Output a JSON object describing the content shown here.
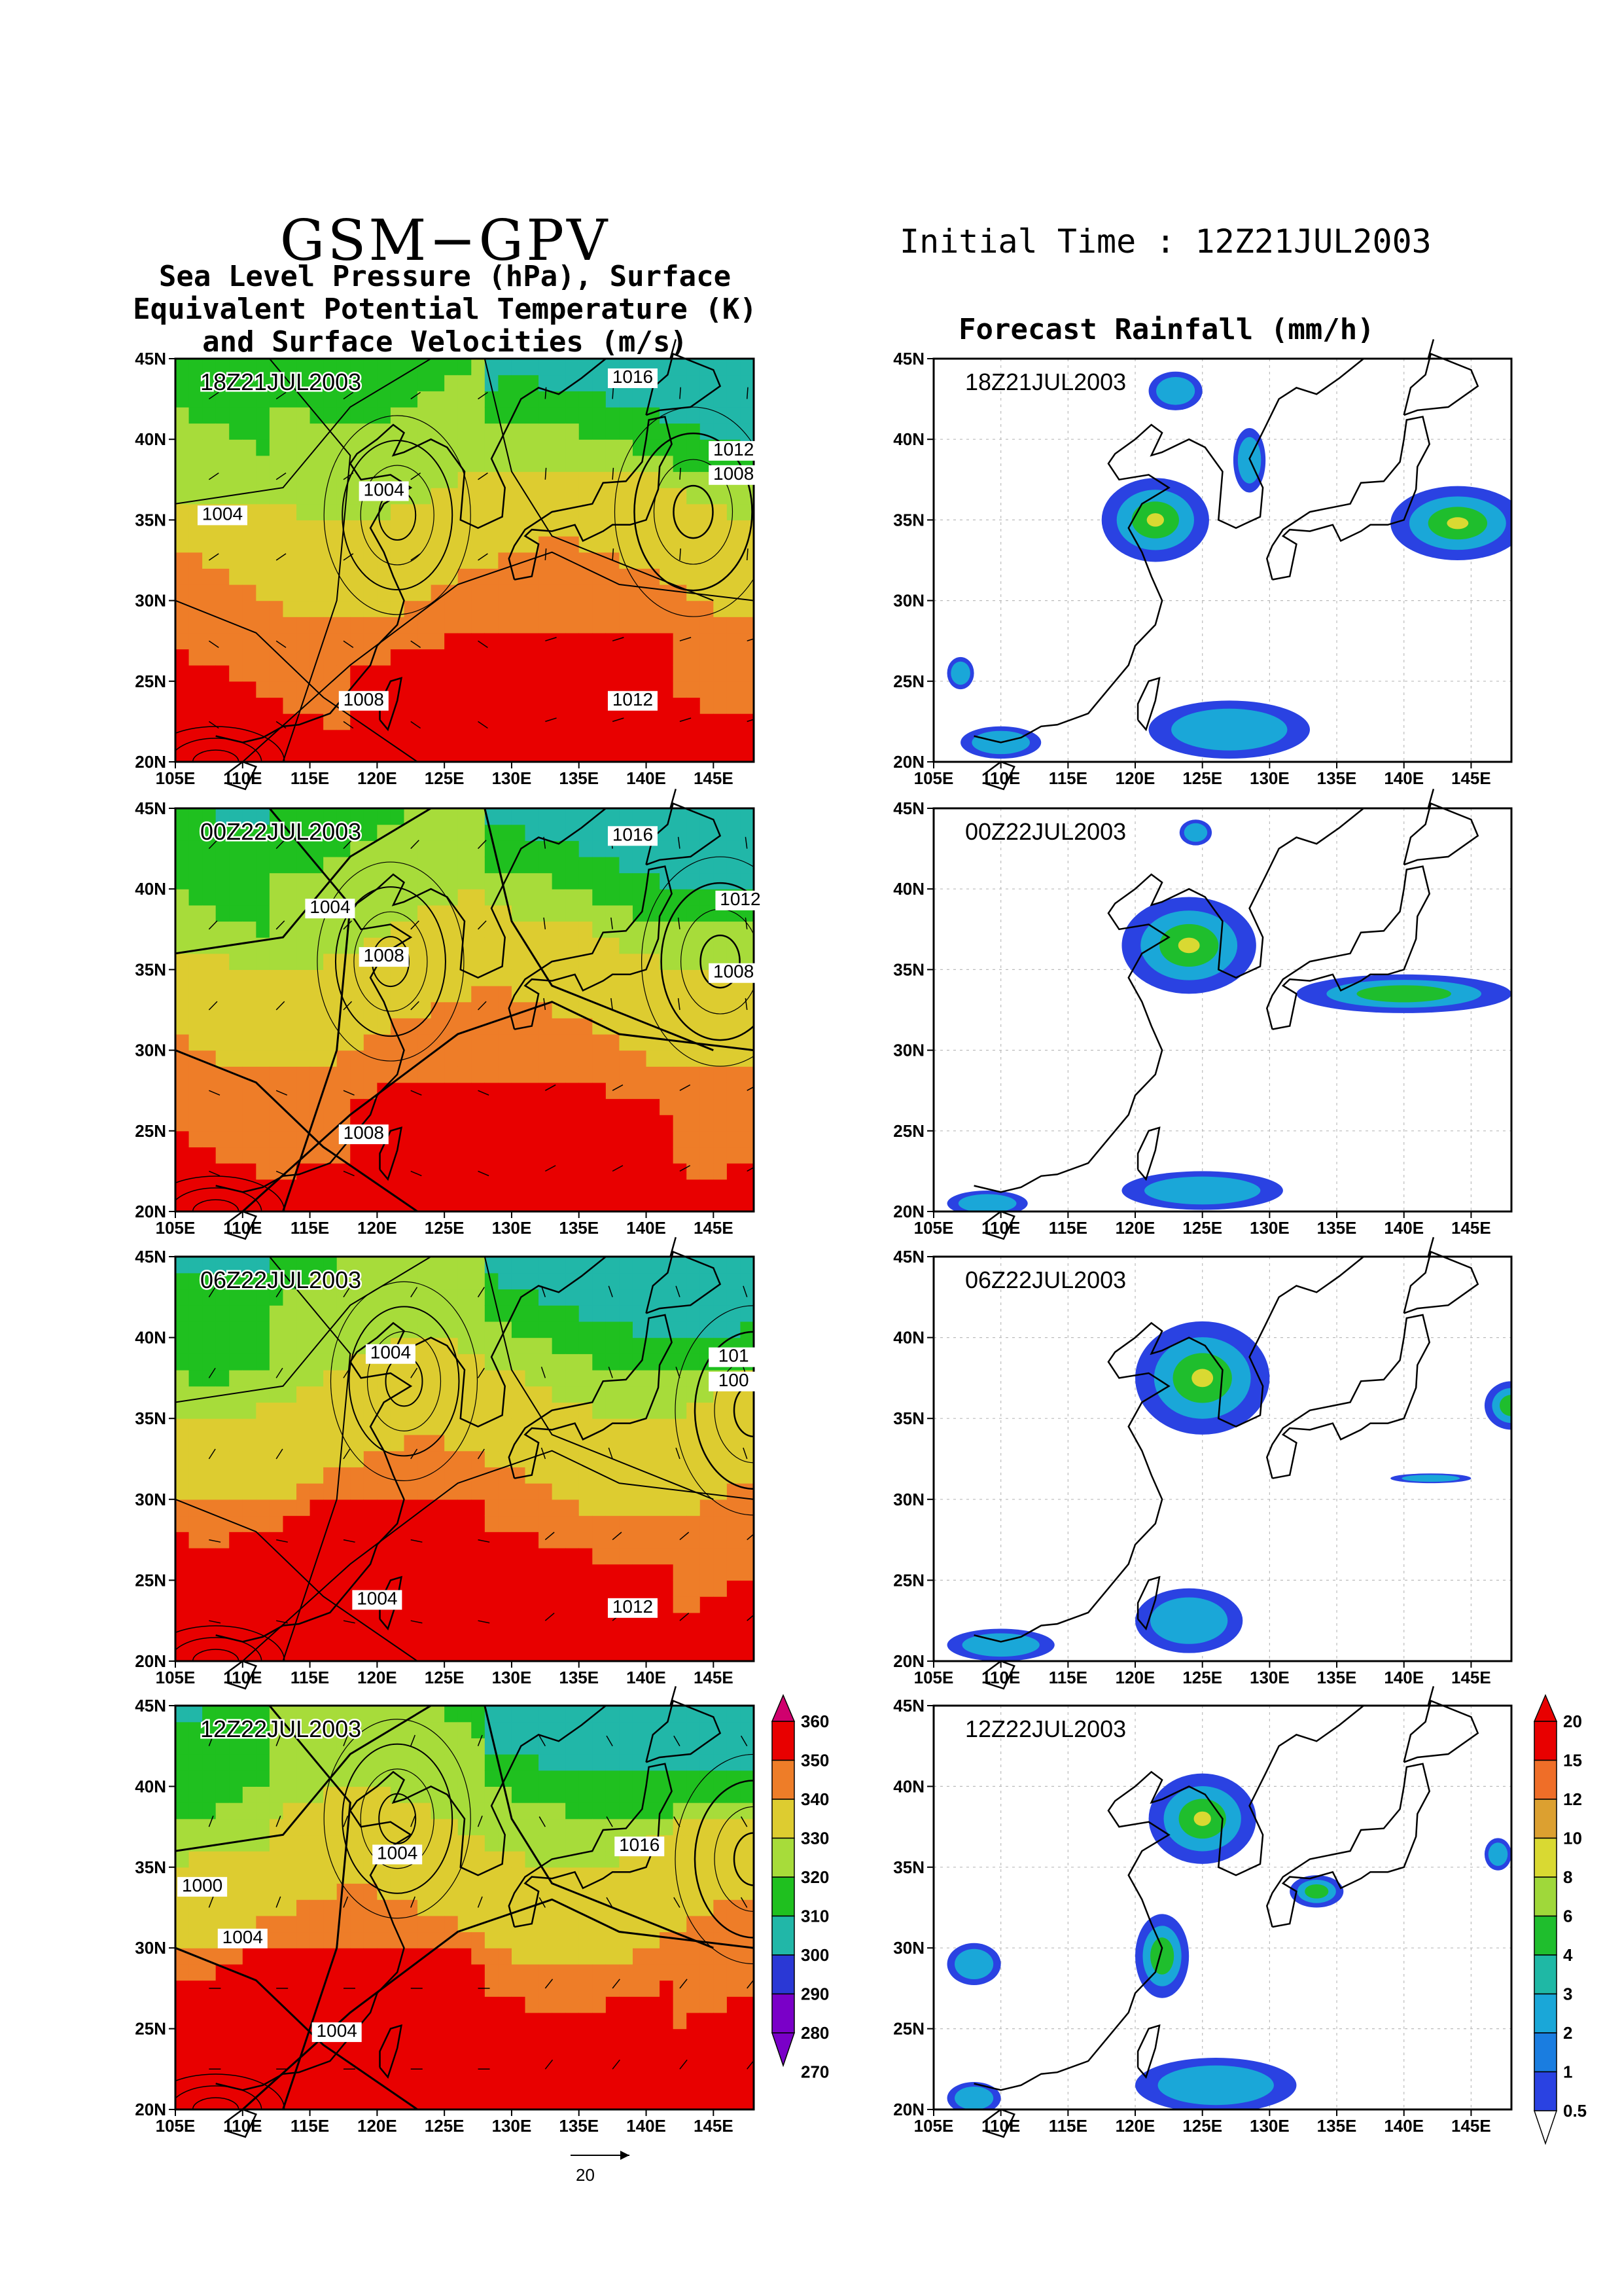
{
  "header": {
    "title": "GSM−GPV",
    "subtitle_lines": [
      "Sea Level Pressure (hPa), Surface",
      "Equivalent Potential Temperature (K)",
      "and Surface Velocities (m/s)"
    ],
    "initial_time": "Initial Time : 12Z21JUL2003",
    "rain_title": "Forecast Rainfall (mm/h)"
  },
  "axes": {
    "lon_labels": [
      "105E",
      "110E",
      "115E",
      "120E",
      "125E",
      "130E",
      "135E",
      "140E",
      "145E"
    ],
    "lat_labels": [
      "45N",
      "40N",
      "35N",
      "30N",
      "25N",
      "20N"
    ]
  },
  "panels": [
    {
      "time": "18Z21JUL2003",
      "pressure_labels": [
        "1016",
        "1012",
        "1008",
        "1004",
        "1004",
        "1008",
        "1012"
      ]
    },
    {
      "time": "00Z22JUL2003",
      "pressure_labels": [
        "1016",
        "1012",
        "1008",
        "1004",
        "1008",
        "1008"
      ]
    },
    {
      "time": "06Z22JUL2003",
      "pressure_labels": [
        "1004",
        "101",
        "100",
        "1004",
        "1012"
      ]
    },
    {
      "time": "12Z22JUL2003",
      "pressure_labels": [
        "1004",
        "1016",
        "1000",
        "1004",
        "1004"
      ]
    }
  ],
  "theta_colorbar": {
    "labels": [
      "360",
      "350",
      "340",
      "330",
      "320",
      "310",
      "300",
      "290",
      "280",
      "270"
    ],
    "colors": [
      "#d0006e",
      "#e80000",
      "#ee7d28",
      "#ddcc30",
      "#a7dc3a",
      "#1fc01f",
      "#21b7a8",
      "#2a38d5",
      "#7a00c8"
    ]
  },
  "rain_colorbar": {
    "labels": [
      "20",
      "15",
      "12",
      "10",
      "8",
      "6",
      "4",
      "3",
      "2",
      "1",
      "0.5"
    ],
    "colors": [
      "#e80000",
      "#ef6e28",
      "#dca030",
      "#d9d932",
      "#9fd83a",
      "#1fbe2d",
      "#1fb8a5",
      "#1aa7d8",
      "#1a7de0",
      "#2a42e2"
    ]
  },
  "vector_reference": "20"
}
